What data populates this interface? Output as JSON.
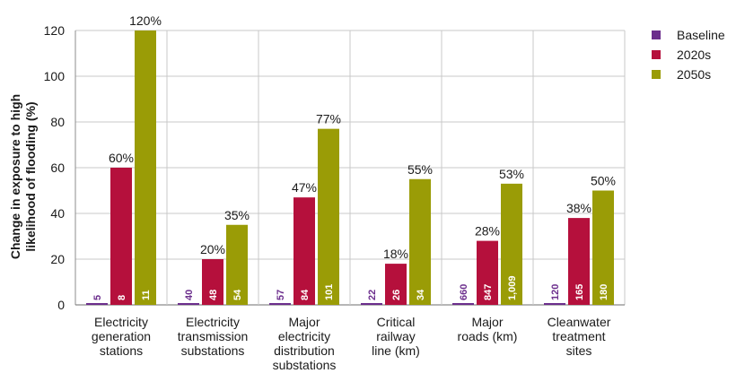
{
  "chart_data": {
    "type": "bar",
    "ylabel": "Change in exposure to high likelihood of flooding (%)",
    "ylim": [
      0,
      120
    ],
    "yticks": [
      0,
      20,
      40,
      60,
      80,
      100,
      120
    ],
    "grid": true,
    "legend_placement": "top-right",
    "categories": [
      [
        "Electricity",
        "generation",
        "stations"
      ],
      [
        "Electricity",
        "transmission",
        "substations"
      ],
      [
        "Major",
        "electricity",
        "distribution",
        "substations"
      ],
      [
        "Critical",
        "railway",
        "line (km)"
      ],
      [
        "Major",
        "roads (km)"
      ],
      [
        "Cleanwater",
        "treatment",
        "sites"
      ]
    ],
    "series": [
      {
        "name": "Baseline",
        "color": "#6b2d8c",
        "values": [
          0,
          0,
          0,
          0,
          0,
          0
        ],
        "inner_labels": [
          "5",
          "40",
          "57",
          "22",
          "660",
          "120"
        ],
        "top_labels": null
      },
      {
        "name": "2020s",
        "color": "#b5103c",
        "values": [
          60,
          20,
          47,
          18,
          28,
          38
        ],
        "inner_labels": [
          "8",
          "48",
          "84",
          "26",
          "847",
          "165"
        ],
        "top_labels": [
          "60%",
          "20%",
          "47%",
          "18%",
          "28%",
          "38%"
        ]
      },
      {
        "name": "2050s",
        "color": "#9a9c06",
        "values": [
          120,
          35,
          77,
          55,
          53,
          50
        ],
        "inner_labels": [
          "11",
          "54",
          "101",
          "34",
          "1,009",
          "180"
        ],
        "top_labels": [
          "120%",
          "35%",
          "77%",
          "55%",
          "53%",
          "50%"
        ]
      }
    ]
  }
}
